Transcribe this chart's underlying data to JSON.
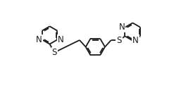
{
  "background": "#ffffff",
  "line_color": "#1a1a1a",
  "line_width": 1.3,
  "font_size": 8.5,
  "fig_width": 2.64,
  "fig_height": 1.25,
  "dpi": 100,
  "xlim": [
    0,
    11
  ],
  "ylim": [
    0,
    5.5
  ]
}
